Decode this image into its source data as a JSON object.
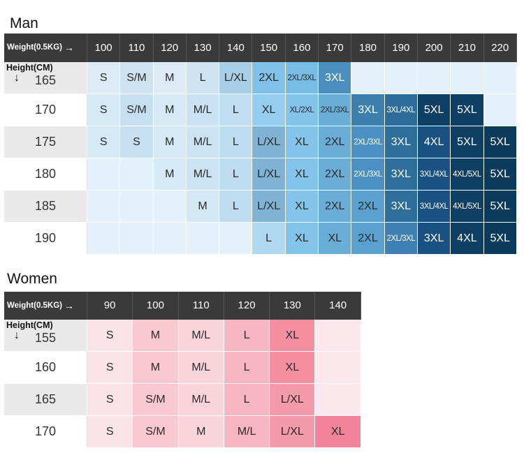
{
  "man": {
    "title": "Man",
    "corner_label": "Weight(0.5KG)",
    "height_label": "Height(CM)",
    "weights": [
      "100",
      "110",
      "120",
      "130",
      "140",
      "150",
      "160",
      "170",
      "180",
      "190",
      "200",
      "210",
      "220"
    ],
    "rows": [
      {
        "height": "165",
        "sizes": [
          "S",
          "S/M",
          "M",
          "L",
          "L/XL",
          "2XL",
          "2XL/3XL",
          "3XL",
          "",
          "",
          "",
          "",
          ""
        ]
      },
      {
        "height": "170",
        "sizes": [
          "S",
          "S/M",
          "M",
          "M/L",
          "L",
          "XL",
          "XL/2XL",
          "2XL/3XL",
          "3XL",
          "3XL/4XL",
          "5XL",
          "5XL",
          ""
        ]
      },
      {
        "height": "175",
        "sizes": [
          "S",
          "S",
          "M",
          "M/L",
          "L",
          "L/XL",
          "XL",
          "2XL",
          "2XL/3XL",
          "3XL",
          "4XL",
          "5XL",
          "5XL"
        ]
      },
      {
        "height": "180",
        "sizes": [
          "",
          "",
          "M",
          "M/L",
          "L",
          "L/XL",
          "XL",
          "2XL",
          "2XL/3XL",
          "3XL",
          "3XL/4XL",
          "4XL/5XL",
          "5XL"
        ]
      },
      {
        "height": "185",
        "sizes": [
          "",
          "",
          "",
          "M",
          "L",
          "L/XL",
          "XL",
          "2XL",
          "2XL",
          "3XL",
          "3XL/4XL",
          "4XL/5XL",
          "5XL"
        ]
      },
      {
        "height": "190",
        "sizes": [
          "",
          "",
          "",
          "",
          "",
          "L",
          "XL",
          "XL",
          "2XL",
          "2XL/3XL",
          "3XL",
          "4XL",
          "5XL"
        ]
      }
    ],
    "colors": [
      [
        "#dcebf6",
        "#cfe2f1",
        "#dcebf6",
        "#cfe4f3",
        "#a7cfe7",
        "#7fc1e8",
        "#77bde6",
        "#4a8fbd",
        "#e3f1fb",
        "#e3f1fb",
        "#e3f1fb",
        "#e3f1fb",
        "#e3f1fb"
      ],
      [
        "#d6e9f6",
        "#c6e0f2",
        "#d6e9f6",
        "#c9e3f5",
        "#c1def2",
        "#94cdef",
        "#84c4ea",
        "#6aaed8",
        "#3d7fad",
        "#2d6c98",
        "#0c3f63",
        "#0c3f63",
        "#e3f1fb"
      ],
      [
        "#d6e9f6",
        "#c7e1f3",
        "#d6e9f6",
        "#cbe4f4",
        "#bfddf1",
        "#7fb3d5",
        "#85c4ea",
        "#6aaed8",
        "#4b90c2",
        "#2e6e9b",
        "#195282",
        "#0c3f63",
        "#0a3a5c"
      ],
      [
        "#e3f1fb",
        "#e3f1fb",
        "#d6e9f6",
        "#cbe4f4",
        "#bfddf1",
        "#7fb3d5",
        "#85c4ea",
        "#6aaed8",
        "#4b90c2",
        "#2e6e9b",
        "#195282",
        "#0c3f63",
        "#0a3a5c"
      ],
      [
        "#e3f1fb",
        "#e3f1fb",
        "#e3f1fb",
        "#d3e8f5",
        "#bfddf1",
        "#7fb3d5",
        "#85c4ea",
        "#6aaed8",
        "#5aa1cf",
        "#2e6e9b",
        "#195282",
        "#0c3f63",
        "#0a3a5c"
      ],
      [
        "#e3f1fb",
        "#e3f1fb",
        "#e3f1fb",
        "#e3f1fb",
        "#e3f1fb",
        "#afd8f1",
        "#85c4ea",
        "#6aaed8",
        "#5aa1cf",
        "#3e80b1",
        "#195282",
        "#0c3f63",
        "#0a3a5c"
      ]
    ]
  },
  "women": {
    "title": "Women",
    "corner_label": "Weight(0.5KG)",
    "height_label": "Height(CM)",
    "weights": [
      "90",
      "100",
      "110",
      "120",
      "130",
      "140"
    ],
    "rows": [
      {
        "height": "155",
        "sizes": [
          "S",
          "M",
          "M/L",
          "L",
          "XL",
          ""
        ]
      },
      {
        "height": "160",
        "sizes": [
          "S",
          "M",
          "M/L",
          "L",
          "XL",
          ""
        ]
      },
      {
        "height": "165",
        "sizes": [
          "S",
          "S/M",
          "M/L",
          "L",
          "L/XL",
          ""
        ]
      },
      {
        "height": "170",
        "sizes": [
          "S",
          "S/M",
          "M",
          "M/L",
          "L/XL",
          "XL"
        ]
      }
    ],
    "colors": [
      [
        "#fbe3e8",
        "#fac8d1",
        "#f9d4da",
        "#f7b6c1",
        "#f48fa0",
        "#fce8ec"
      ],
      [
        "#fbe3e8",
        "#fac8d1",
        "#f9d4da",
        "#f7b6c1",
        "#f48fa0",
        "#fce8ec"
      ],
      [
        "#fbe3e8",
        "#fac8d1",
        "#f9d4da",
        "#f7b6c1",
        "#f49aaa",
        "#fce8ec"
      ],
      [
        "#fbe3e8",
        "#fac8d1",
        "#f9d4da",
        "#f7b6c1",
        "#f49aaa",
        "#f38399"
      ]
    ]
  }
}
